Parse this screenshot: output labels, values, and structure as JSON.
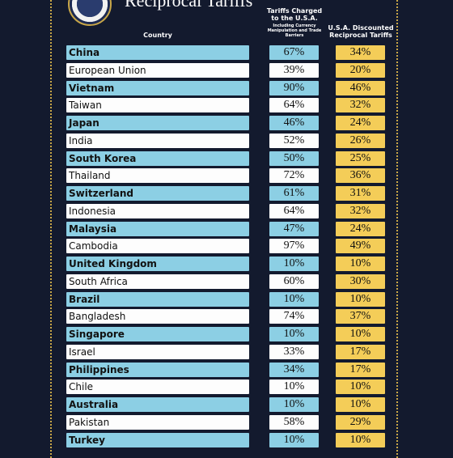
{
  "header": {
    "title": "Reciprocal Tariffs",
    "col_country": "Country",
    "col_charged": "Tariffs Charged to the U.S.A.",
    "col_charged_note": "Including Currency Manipulation and Trade Barriers",
    "col_discounted": "U.S.A. Discounted Reciprocal Tariffs"
  },
  "table": {
    "rows": [
      [
        "China",
        "67%",
        "34%"
      ],
      [
        "European Union",
        "39%",
        "20%"
      ],
      [
        "Vietnam",
        "90%",
        "46%"
      ],
      [
        "Taiwan",
        "64%",
        "32%"
      ],
      [
        "Japan",
        "46%",
        "24%"
      ],
      [
        "India",
        "52%",
        "26%"
      ],
      [
        "South Korea",
        "50%",
        "25%"
      ],
      [
        "Thailand",
        "72%",
        "36%"
      ],
      [
        "Switzerland",
        "61%",
        "31%"
      ],
      [
        "Indonesia",
        "64%",
        "32%"
      ],
      [
        "Malaysia",
        "47%",
        "24%"
      ],
      [
        "Cambodia",
        "97%",
        "49%"
      ],
      [
        "United Kingdom",
        "10%",
        "10%"
      ],
      [
        "South Africa",
        "60%",
        "30%"
      ],
      [
        "Brazil",
        "10%",
        "10%"
      ],
      [
        "Bangladesh",
        "74%",
        "37%"
      ],
      [
        "Singapore",
        "10%",
        "10%"
      ],
      [
        "Israel",
        "33%",
        "17%"
      ],
      [
        "Philippines",
        "34%",
        "17%"
      ],
      [
        "Chile",
        "10%",
        "10%"
      ],
      [
        "Australia",
        "10%",
        "10%"
      ],
      [
        "Pakistan",
        "58%",
        "29%"
      ],
      [
        "Turkey",
        "10%",
        "10%"
      ]
    ]
  }
}
